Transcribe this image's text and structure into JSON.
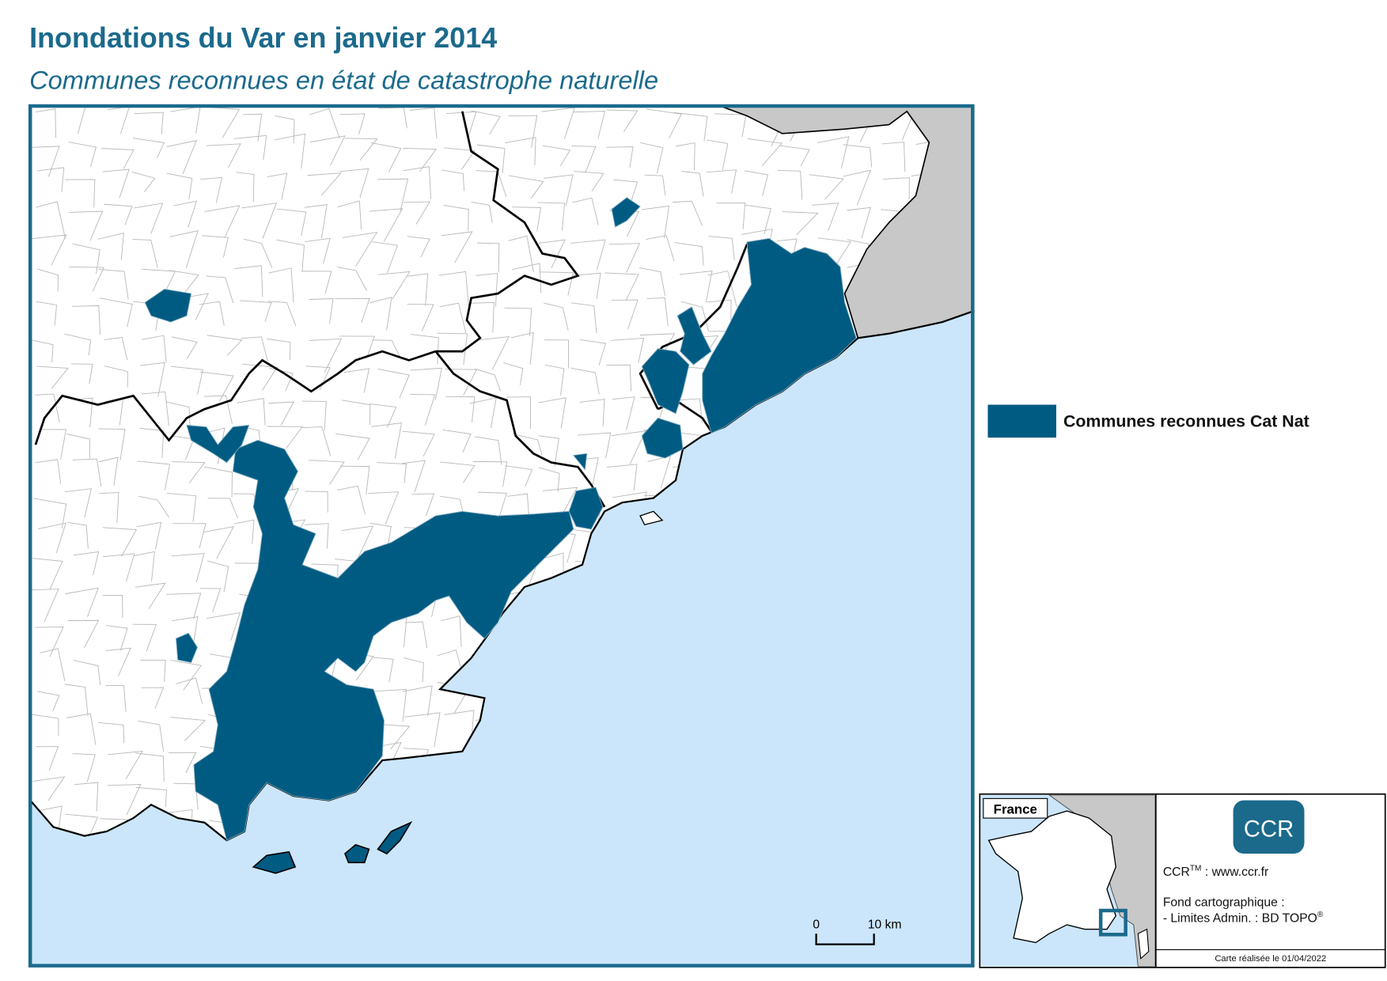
{
  "header": {
    "title": "Inondations du Var en janvier 2014",
    "subtitle": "Communes reconnues en état de catastrophe naturelle"
  },
  "legend": {
    "label": "Communes reconnues Cat Nat"
  },
  "scale_bar": {
    "start": "0",
    "end": "10 km"
  },
  "inset": {
    "label": "France"
  },
  "credits": {
    "logo": "CCR",
    "site_name": "CCR",
    "site_mark": "TM",
    "site_url": " : www.ccr.fr",
    "source_title": "Fond cartographique :",
    "source_line": "- Limites Admin. : BD TOPO",
    "source_mark": "®",
    "date": "Carte réalisée le 01/04/2022"
  }
}
